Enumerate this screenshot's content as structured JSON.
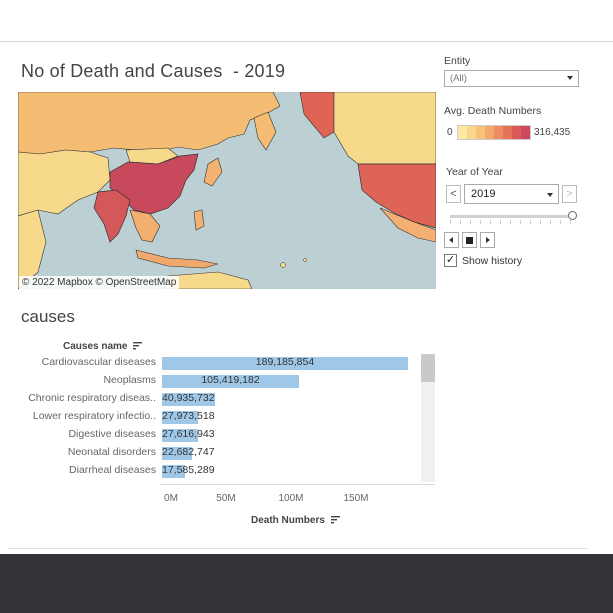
{
  "dashboard": {
    "title": "No of Death and Causes  - 2019",
    "map_credit": "© 2022 Mapbox © OpenStreetMap"
  },
  "filters": {
    "entity_label": "Entity",
    "entity_value": "(All)",
    "legend_label": "Avg. Death Numbers",
    "legend_min": "0",
    "legend_max": "316,435",
    "legend_colors": [
      "#fbe9a4",
      "#f9d889",
      "#f7c27a",
      "#f4a86c",
      "#ee8d62",
      "#e6725b",
      "#db5a58",
      "#cc4a5b"
    ],
    "year_label": "Year of Year",
    "year_value": "2019",
    "prev_button": "<",
    "next_button": ">",
    "show_history_label": "Show history",
    "show_history_checked": true,
    "check_mark": "✓"
  },
  "causes_section": {
    "title": "causes",
    "column_header": "Causes name",
    "x_axis_title": "Death Numbers",
    "x_ticks": [
      "0M",
      "50M",
      "100M",
      "150M"
    ]
  },
  "chart_data": {
    "type": "bar",
    "orientation": "horizontal",
    "title": "causes",
    "xlabel": "Death Numbers",
    "ylabel": "Causes name",
    "xlim": [
      0,
      200000000
    ],
    "categories": [
      "Cardiovascular diseases",
      "Neoplasms",
      "Chronic respiratory diseas..",
      "Lower respiratory infectio..",
      "Digestive diseases",
      "Neonatal disorders",
      "Diarrheal diseases"
    ],
    "values": [
      189185854,
      105419182,
      40935732,
      27973518,
      27616943,
      22682747,
      17585289
    ],
    "value_labels": [
      "189,185,854",
      "105,419,182",
      "40,935,732",
      "27,973,518",
      "27,616,943",
      "22,682,747",
      "17,585,289"
    ],
    "bar_color": "#9fc8e8"
  }
}
